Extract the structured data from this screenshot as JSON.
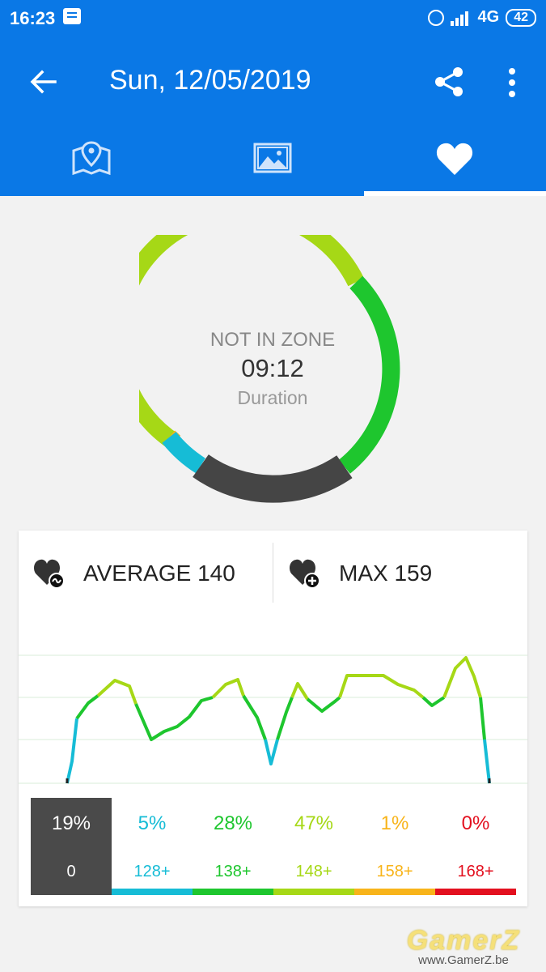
{
  "statusbar": {
    "time": "16:23",
    "network": "4G",
    "battery": "42"
  },
  "appbar": {
    "title": "Sun, 12/05/2019"
  },
  "tabs": [
    {
      "icon": "map-icon"
    },
    {
      "icon": "image-icon"
    },
    {
      "icon": "heart-icon",
      "selected": true
    }
  ],
  "ring": {
    "zone_label": "NOT IN ZONE",
    "duration": "09:12",
    "duration_label": "Duration"
  },
  "stats": {
    "average_label": "AVERAGE 140",
    "max_label": "MAX 159"
  },
  "zones": [
    {
      "percent": "19%",
      "threshold": "0",
      "color": "#4a4a4a"
    },
    {
      "percent": "5%",
      "threshold": "128+",
      "color": "#16bcd6"
    },
    {
      "percent": "28%",
      "threshold": "138+",
      "color": "#1ec62e"
    },
    {
      "percent": "47%",
      "threshold": "148+",
      "color": "#a6d816"
    },
    {
      "percent": "1%",
      "threshold": "158+",
      "color": "#f8b41a"
    },
    {
      "percent": "0%",
      "threshold": "168+",
      "color": "#e3101f"
    }
  ],
  "colors": {
    "accent": "#0a78e6"
  },
  "watermark": {
    "logo": "GamerZ",
    "url": "www.GamerZ.be"
  }
}
